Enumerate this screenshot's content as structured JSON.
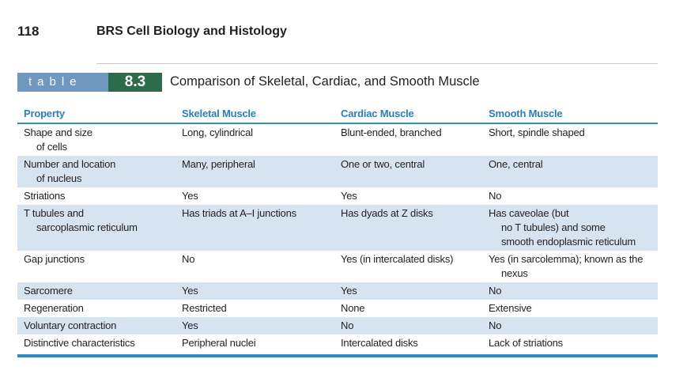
{
  "header": {
    "page_number": "118",
    "book_title": "BRS Cell Biology and Histology"
  },
  "table": {
    "label": "table",
    "number": "8.3",
    "caption": "Comparison of Skeletal, Cardiac, and Smooth Muscle",
    "columns": [
      "Property",
      "Skeletal Muscle",
      "Cardiac Muscle",
      "Smooth Muscle"
    ],
    "rows": [
      [
        [
          "Shape and size",
          "of cells"
        ],
        [
          "Long, cylindrical"
        ],
        [
          "Blunt-ended, branched"
        ],
        [
          "Short, spindle shaped"
        ]
      ],
      [
        [
          "Number and location",
          "of nucleus"
        ],
        [
          "Many, peripheral"
        ],
        [
          "One or two, central"
        ],
        [
          "One, central"
        ]
      ],
      [
        [
          "Striations"
        ],
        [
          "Yes"
        ],
        [
          "Yes"
        ],
        [
          "No"
        ]
      ],
      [
        [
          "T tubules and",
          "sarcoplasmic reticulum"
        ],
        [
          "Has triads at A–I junctions"
        ],
        [
          "Has dyads at Z disks"
        ],
        [
          "Has caveolae (but",
          "no T tubules) and some",
          "smooth endoplasmic reticulum"
        ]
      ],
      [
        [
          "Gap junctions"
        ],
        [
          "No"
        ],
        [
          "Yes (in intercalated disks)"
        ],
        [
          "Yes (in sarcolemma); known as the",
          "nexus"
        ]
      ],
      [
        [
          "Sarcomere"
        ],
        [
          "Yes"
        ],
        [
          "Yes"
        ],
        [
          "No"
        ]
      ],
      [
        [
          "Regeneration"
        ],
        [
          "Restricted"
        ],
        [
          "None"
        ],
        [
          "Extensive"
        ]
      ],
      [
        [
          "Voluntary contraction"
        ],
        [
          "Yes"
        ],
        [
          "No"
        ],
        [
          "No"
        ]
      ],
      [
        [
          "Distinctive characteristics"
        ],
        [
          "Peripheral nuclei"
        ],
        [
          "Intercalated disks"
        ],
        [
          "Lack of striations"
        ]
      ]
    ]
  }
}
